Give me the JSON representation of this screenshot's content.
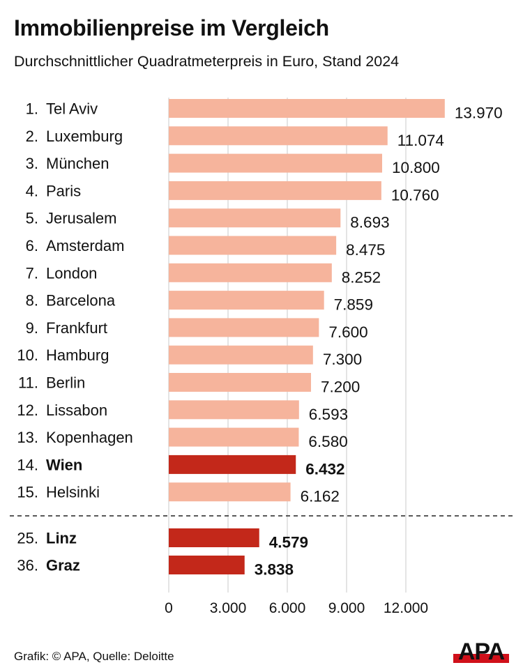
{
  "title": "Immobilienpreise im Vergleich",
  "subtitle": "Durchschnittlicher Quadratmeterpreis in Euro, Stand 2024",
  "source": "Grafik: © APA, Quelle: Deloitte",
  "logo": "APA",
  "chart_data": {
    "type": "bar",
    "orientation": "horizontal",
    "xlim": [
      0,
      14000
    ],
    "grid": true,
    "xticks": [
      0,
      3000,
      6000,
      9000,
      12000
    ],
    "xtick_labels": [
      "0",
      "3.000",
      "6.000",
      "9.000",
      "12.000"
    ],
    "colors": {
      "default": "#f6b49c",
      "highlight": "#c3281a"
    },
    "rows": [
      {
        "rank": "1.",
        "city": "Tel Aviv",
        "value": 13970,
        "label": "13.970",
        "highlight": false
      },
      {
        "rank": "2.",
        "city": "Luxemburg",
        "value": 11074,
        "label": "11.074",
        "highlight": false
      },
      {
        "rank": "3.",
        "city": "München",
        "value": 10800,
        "label": "10.800",
        "highlight": false
      },
      {
        "rank": "4.",
        "city": "Paris",
        "value": 10760,
        "label": "10.760",
        "highlight": false
      },
      {
        "rank": "5.",
        "city": "Jerusalem",
        "value": 8693,
        "label": "8.693",
        "highlight": false
      },
      {
        "rank": "6.",
        "city": "Amsterdam",
        "value": 8475,
        "label": "8.475",
        "highlight": false
      },
      {
        "rank": "7.",
        "city": "London",
        "value": 8252,
        "label": "8.252",
        "highlight": false
      },
      {
        "rank": "8.",
        "city": "Barcelona",
        "value": 7859,
        "label": "7.859",
        "highlight": false
      },
      {
        "rank": "9.",
        "city": "Frankfurt",
        "value": 7600,
        "label": "7.600",
        "highlight": false
      },
      {
        "rank": "10.",
        "city": "Hamburg",
        "value": 7300,
        "label": "7.300",
        "highlight": false
      },
      {
        "rank": "11.",
        "city": "Berlin",
        "value": 7200,
        "label": "7.200",
        "highlight": false
      },
      {
        "rank": "12.",
        "city": "Lissabon",
        "value": 6593,
        "label": "6.593",
        "highlight": false
      },
      {
        "rank": "13.",
        "city": "Kopenhagen",
        "value": 6580,
        "label": "6.580",
        "highlight": false
      },
      {
        "rank": "14.",
        "city": "Wien",
        "value": 6432,
        "label": "6.432",
        "highlight": true
      },
      {
        "rank": "15.",
        "city": "Helsinki",
        "value": 6162,
        "label": "6.162",
        "highlight": false
      },
      {
        "rank": "25.",
        "city": "Linz",
        "value": 4579,
        "label": "4.579",
        "highlight": true
      },
      {
        "rank": "36.",
        "city": "Graz",
        "value": 3838,
        "label": "3.838",
        "highlight": true
      }
    ]
  }
}
